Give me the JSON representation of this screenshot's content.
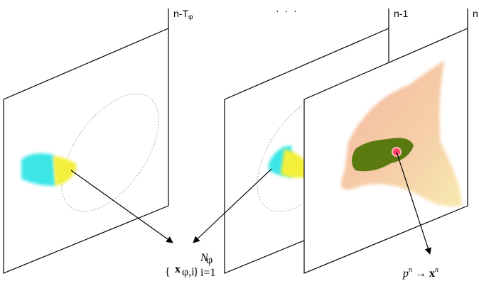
{
  "frames": [
    {
      "label": "n-T",
      "sub": "φ"
    },
    {
      "label": "n-1"
    },
    {
      "label": "n"
    }
  ],
  "ellipsis": "· · ·",
  "set_label": {
    "open": "{",
    "var": "x",
    "sub": "φ,i",
    "close": "}",
    "sup": "N",
    "sup_sub": "φ",
    "lower": "i=1"
  },
  "mapping_label": {
    "p": "p",
    "p_sup": "n",
    "arrow": "→",
    "x": "x",
    "x_sup": "n"
  }
}
